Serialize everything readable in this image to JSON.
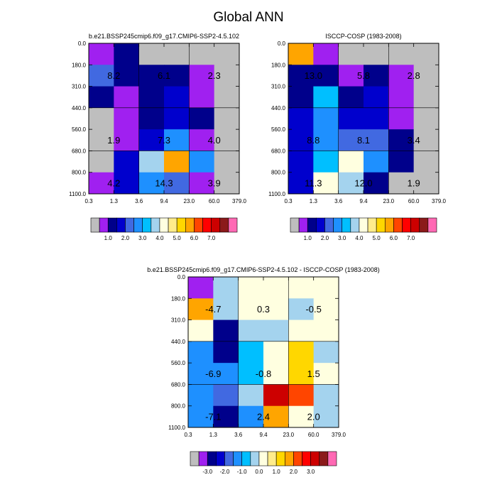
{
  "figure_title": "Global ANN",
  "chart_data": [
    {
      "type": "heatmap",
      "title": "b.e21.BSSP245cmip6.f09_g17.CMIP6-SSP2-4.5.102",
      "x_ticks": [
        "0.3",
        "1.3",
        "3.6",
        "9.4",
        "23.0",
        "60.0",
        "379.0"
      ],
      "y_ticks": [
        "0.0",
        "180.0",
        "310.0",
        "440.0",
        "560.0",
        "680.0",
        "800.0",
        "1100.0"
      ],
      "colorbar": {
        "colors": [
          "#bebebe",
          "#a020f0",
          "#00008b",
          "#0000cd",
          "#4169e1",
          "#1e90ff",
          "#00bfff",
          "#a4d3ee",
          "#ffffe0",
          "#ffec8b",
          "#ffd700",
          "#ffa500",
          "#ff4500",
          "#ff0000",
          "#cd0000",
          "#8b1a1a",
          "#ff69b4"
        ],
        "labels": [
          "1.0",
          "2.0",
          "3.0",
          "4.0",
          "5.0",
          "6.0",
          "7.0"
        ],
        "label_positions": [
          2,
          4,
          6,
          8,
          10,
          12,
          14
        ]
      },
      "cells": [
        [
          1,
          2,
          0,
          0,
          0,
          0
        ],
        [
          4,
          2,
          2,
          2,
          1,
          0
        ],
        [
          2,
          1,
          2,
          3,
          1,
          0
        ],
        [
          0,
          1,
          2,
          3,
          2,
          0
        ],
        [
          0,
          1,
          3,
          5,
          1,
          0
        ],
        [
          0,
          3,
          7,
          11,
          5,
          0
        ],
        [
          1,
          3,
          5,
          4,
          1,
          0
        ]
      ],
      "annotations": [
        {
          "row": 1,
          "col": 0,
          "label": "8.2"
        },
        {
          "row": 1,
          "col": 2,
          "label": "6.1"
        },
        {
          "row": 1,
          "col": 4,
          "label": "2.3"
        },
        {
          "row": 4,
          "col": 0,
          "label": "1.9"
        },
        {
          "row": 4,
          "col": 2,
          "label": "7.3"
        },
        {
          "row": 4,
          "col": 4,
          "label": "4.0"
        },
        {
          "row": 6,
          "col": 0,
          "label": "4.2"
        },
        {
          "row": 6,
          "col": 2,
          "label": "14.3"
        },
        {
          "row": 6,
          "col": 4,
          "label": "3.9"
        }
      ]
    },
    {
      "type": "heatmap",
      "title": "ISCCP-COSP (1983-2008)",
      "x_ticks": [
        "0.3",
        "1.3",
        "3.6",
        "9.4",
        "23.0",
        "60.0",
        "379.0"
      ],
      "y_ticks": [
        "0.0",
        "180.0",
        "310.0",
        "440.0",
        "560.0",
        "680.0",
        "800.0",
        "1100.0"
      ],
      "colorbar": {
        "colors": [
          "#bebebe",
          "#a020f0",
          "#00008b",
          "#0000cd",
          "#4169e1",
          "#1e90ff",
          "#00bfff",
          "#a4d3ee",
          "#ffffe0",
          "#ffec8b",
          "#ffd700",
          "#ffa500",
          "#ff4500",
          "#ff0000",
          "#cd0000",
          "#8b1a1a",
          "#ff69b4"
        ],
        "labels": [
          "1.0",
          "2.0",
          "3.0",
          "4.0",
          "5.0",
          "6.0",
          "7.0"
        ],
        "label_positions": [
          2,
          4,
          6,
          8,
          10,
          12,
          14
        ]
      },
      "cells": [
        [
          11,
          1,
          0,
          0,
          0,
          0
        ],
        [
          2,
          2,
          1,
          2,
          1,
          0
        ],
        [
          2,
          6,
          2,
          3,
          1,
          0
        ],
        [
          3,
          5,
          3,
          3,
          1,
          0
        ],
        [
          3,
          5,
          4,
          4,
          2,
          0
        ],
        [
          3,
          6,
          8,
          5,
          2,
          0
        ],
        [
          3,
          8,
          7,
          2,
          0,
          0
        ]
      ],
      "annotations": [
        {
          "row": 1,
          "col": 0,
          "label": "13.0"
        },
        {
          "row": 1,
          "col": 2,
          "label": "5.8"
        },
        {
          "row": 1,
          "col": 4,
          "label": "2.8"
        },
        {
          "row": 4,
          "col": 0,
          "label": "8.8"
        },
        {
          "row": 4,
          "col": 2,
          "label": "8.1"
        },
        {
          "row": 4,
          "col": 4,
          "label": "3.4"
        },
        {
          "row": 6,
          "col": 0,
          "label": "11.3"
        },
        {
          "row": 6,
          "col": 2,
          "label": "12.0"
        },
        {
          "row": 6,
          "col": 4,
          "label": "1.9"
        }
      ]
    },
    {
      "type": "heatmap",
      "title": "b.e21.BSSP245cmip6.f09_g17.CMIP6-SSP2-4.5.102 - ISCCP-COSP (1983-2008)",
      "x_ticks": [
        "0.3",
        "1.3",
        "3.6",
        "9.4",
        "23.0",
        "60.0",
        "379.0"
      ],
      "y_ticks": [
        "0.0",
        "180.0",
        "310.0",
        "440.0",
        "560.0",
        "680.0",
        "800.0",
        "1100.0"
      ],
      "colorbar": {
        "colors": [
          "#bebebe",
          "#a020f0",
          "#00008b",
          "#0000cd",
          "#4169e1",
          "#1e90ff",
          "#00bfff",
          "#a4d3ee",
          "#ffffe0",
          "#ffec8b",
          "#ffd700",
          "#ffa500",
          "#ff4500",
          "#ff0000",
          "#cd0000",
          "#8b1a1a",
          "#ff69b4"
        ],
        "labels": [
          "-3.0",
          "-2.0",
          "-1.0",
          "0.0",
          "1.0",
          "2.0",
          "3.0"
        ],
        "label_positions": [
          2,
          4,
          6,
          8,
          10,
          12,
          14
        ]
      },
      "cells": [
        [
          1,
          7,
          8,
          8,
          8,
          8
        ],
        [
          11,
          7,
          8,
          8,
          7,
          8
        ],
        [
          8,
          2,
          7,
          7,
          8,
          8
        ],
        [
          5,
          2,
          6,
          8,
          10,
          7
        ],
        [
          5,
          5,
          6,
          8,
          10,
          8
        ],
        [
          5,
          4,
          7,
          14,
          12,
          7
        ],
        [
          5,
          2,
          5,
          11,
          8,
          7
        ]
      ],
      "annotations": [
        {
          "row": 1,
          "col": 0,
          "label": "-4.7"
        },
        {
          "row": 1,
          "col": 2,
          "label": "0.3"
        },
        {
          "row": 1,
          "col": 4,
          "label": "-0.5"
        },
        {
          "row": 4,
          "col": 0,
          "label": "-6.9"
        },
        {
          "row": 4,
          "col": 2,
          "label": "-0.8"
        },
        {
          "row": 4,
          "col": 4,
          "label": "1.5"
        },
        {
          "row": 6,
          "col": 0,
          "label": "-7.1"
        },
        {
          "row": 6,
          "col": 2,
          "label": "2.4"
        },
        {
          "row": 6,
          "col": 4,
          "label": "2.0"
        }
      ]
    }
  ]
}
